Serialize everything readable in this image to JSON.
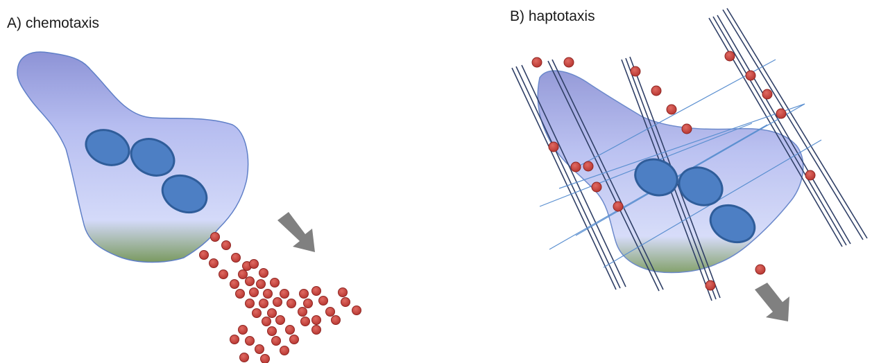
{
  "panels": [
    {
      "id": "a",
      "label": "A) chemotaxis",
      "mode": "chemotaxis"
    },
    {
      "id": "b",
      "label": "B) haptotaxis",
      "mode": "haptotaxis"
    }
  ],
  "colors": {
    "cell_top": "#8d93d6",
    "cell_mid": "#cdd3f8",
    "cell_bottom": "#7a9a60",
    "cell_outline": "#5f7fc7",
    "nucleus_fill": "#4d7fc4",
    "nucleus_stroke": "#2f5d9a",
    "particle_fill": "#c7443f",
    "particle_stroke": "#8e2522",
    "arrow": "#808080",
    "fiber": "#2f3f66",
    "thin_line": "#5a8fd0"
  }
}
